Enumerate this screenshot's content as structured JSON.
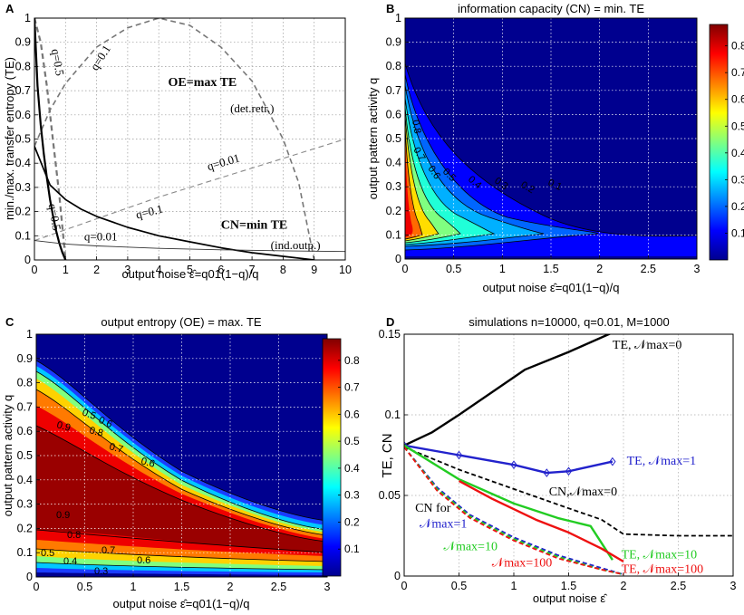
{
  "chart_data": [
    {
      "panel": "A",
      "type": "line",
      "title": "",
      "xlabel": "output noise ε̂=q01(1−q)/q",
      "ylabel": "min./max. transfer entropy (TE)",
      "xlim": [
        0,
        10
      ],
      "ylim": [
        0,
        1
      ],
      "xticks": [
        "0",
        "1",
        "2",
        "3",
        "4",
        "5",
        "6",
        "7",
        "8",
        "9",
        "10"
      ],
      "yticks": [
        "0",
        "0.1",
        "0.2",
        "0.3",
        "0.4",
        "0.5",
        "0.6",
        "0.7",
        "0.8",
        "0.9",
        "1"
      ],
      "series": [
        {
          "name": "OE q=0.5",
          "style": "dashed-thick",
          "x": [
            0,
            0.2,
            0.4,
            0.6,
            0.8,
            1.0
          ],
          "y": [
            1.0,
            0.9,
            0.72,
            0.49,
            0.27,
            0.0
          ]
        },
        {
          "name": "OE q=0.1",
          "style": "dashed",
          "x": [
            0,
            0.5,
            1,
            2,
            3,
            4,
            5,
            6,
            7,
            8,
            8.5,
            9
          ],
          "y": [
            0.47,
            0.62,
            0.73,
            0.88,
            0.96,
            1.0,
            0.97,
            0.88,
            0.74,
            0.5,
            0.32,
            0.0
          ]
        },
        {
          "name": "OE q=0.01",
          "style": "dashed-thin",
          "x": [
            0,
            2,
            4,
            6,
            8,
            10
          ],
          "y": [
            0.08,
            0.17,
            0.26,
            0.34,
            0.42,
            0.5
          ]
        },
        {
          "name": "CN q=0.5",
          "style": "solid-thick",
          "x": [
            0,
            0.1,
            0.2,
            0.3,
            0.4,
            0.5,
            0.6,
            0.7,
            0.8,
            0.9,
            1.0
          ],
          "y": [
            1.0,
            0.72,
            0.56,
            0.44,
            0.34,
            0.25,
            0.18,
            0.12,
            0.07,
            0.03,
            0.0
          ]
        },
        {
          "name": "CN q=0.1",
          "style": "solid",
          "x": [
            0,
            0.5,
            1,
            1.5,
            2,
            3,
            4,
            5,
            6,
            7,
            8,
            9
          ],
          "y": [
            0.47,
            0.31,
            0.25,
            0.21,
            0.18,
            0.135,
            0.1,
            0.075,
            0.05,
            0.03,
            0.015,
            0.0
          ]
        },
        {
          "name": "CN q=0.01",
          "style": "solid-thin",
          "x": [
            0,
            1,
            2,
            4,
            6,
            8,
            10
          ],
          "y": [
            0.08,
            0.066,
            0.058,
            0.048,
            0.042,
            0.038,
            0.035
          ]
        }
      ],
      "annotations": [
        {
          "text": "q=0.5",
          "x": 0.55,
          "y": 0.87,
          "rotate": 80
        },
        {
          "text": "q=0.1",
          "x": 2.0,
          "y": 0.78,
          "rotate": -58
        },
        {
          "text": "q=0.01",
          "x": 5.6,
          "y": 0.37,
          "rotate": -16
        },
        {
          "text": "q=0.5",
          "x": 0.45,
          "y": 0.23,
          "rotate": 80
        },
        {
          "text": "q=0.1",
          "x": 3.3,
          "y": 0.17,
          "rotate": -14
        },
        {
          "text": "q=0.01",
          "x": 1.6,
          "y": 0.08,
          "rotate": 0
        },
        {
          "text": "OE=max TE",
          "x": 4.3,
          "y": 0.72,
          "rotate": 0,
          "bold": true
        },
        {
          "text": "(det.retr.)",
          "x": 6.3,
          "y": 0.61,
          "rotate": 0
        },
        {
          "text": "CN=min TE",
          "x": 6.0,
          "y": 0.13,
          "rotate": 0,
          "bold": true
        },
        {
          "text": "(ind.outp.)",
          "x": 7.6,
          "y": 0.045,
          "rotate": 0
        }
      ]
    },
    {
      "panel": "B",
      "type": "heatmap",
      "title": "information capacity (CN) = min. TE",
      "xlabel": "output noise ε̂=q01(1−q)/q",
      "ylabel": "output pattern activity q",
      "xlim": [
        0,
        3
      ],
      "ylim": [
        0,
        1
      ],
      "xticks": [
        "0",
        "0.5",
        "1",
        "1.5",
        "2",
        "2.5",
        "3"
      ],
      "yticks": [
        "0",
        "0.1",
        "0.2",
        "0.3",
        "0.4",
        "0.5",
        "0.6",
        "0.7",
        "0.8",
        "0.9",
        "1"
      ],
      "contour_labels": [
        "0.8",
        "0.7",
        "0.6",
        "0.5",
        "0.4",
        "0.3",
        "0.2",
        "0.1"
      ],
      "colorbar_ticks": [
        "0.1",
        "0.2",
        "0.3",
        "0.4",
        "0.5",
        "0.6",
        "0.7",
        "0.8"
      ],
      "zlim": [
        0,
        0.88
      ]
    },
    {
      "panel": "C",
      "type": "heatmap",
      "title": "output entropy (OE) = max. TE",
      "xlabel": "output noise ε̂=q01(1−q)/q",
      "ylabel": "output pattern activity q",
      "xlim": [
        0,
        3
      ],
      "ylim": [
        0,
        1
      ],
      "xticks": [
        "0",
        "0.5",
        "1",
        "1.5",
        "2",
        "2.5",
        "3"
      ],
      "yticks": [
        "0",
        "0.1",
        "0.2",
        "0.3",
        "0.4",
        "0.5",
        "0.6",
        "0.7",
        "0.8",
        "0.9",
        "1"
      ],
      "contour_labels": [
        "0.5",
        "0.6",
        "0.9",
        "0.8",
        "0.7",
        "0.6",
        "0.9",
        "0.8",
        "0.7",
        "0.6",
        "0.5",
        "0.4",
        "0.3"
      ],
      "colorbar_ticks": [
        "0.1",
        "0.2",
        "0.3",
        "0.4",
        "0.5",
        "0.6",
        "0.7",
        "0.8"
      ],
      "zlim": [
        0,
        0.88
      ]
    },
    {
      "panel": "D",
      "type": "line",
      "title": "simulations n=10000, q=0.01, M=1000",
      "xlabel": "output noise ε̂",
      "ylabel": "TE, CN",
      "xlim": [
        0,
        3
      ],
      "ylim": [
        0,
        0.15
      ],
      "xticks": [
        "0",
        "0.5",
        "1",
        "1.5",
        "2",
        "2.5",
        "3"
      ],
      "yticks": [
        "0",
        "0.05",
        "0.1",
        "0.15"
      ],
      "series": [
        {
          "name": "TE, Nmax=0",
          "color": "#000000",
          "style": "solid",
          "x": [
            0,
            0.25,
            0.5,
            1.1,
            1.5,
            1.9
          ],
          "y": [
            0.081,
            0.089,
            0.1,
            0.128,
            0.139,
            0.151
          ]
        },
        {
          "name": "TE, Nmax=1",
          "color": "#2222cc",
          "style": "solid-marker",
          "x": [
            0,
            0.5,
            1.0,
            1.3,
            1.5,
            1.9
          ],
          "y": [
            0.081,
            0.075,
            0.069,
            0.064,
            0.065,
            0.071
          ]
        },
        {
          "name": "CN, Nmax=0",
          "color": "#000000",
          "style": "dashed",
          "x": [
            0,
            0.5,
            1.0,
            1.5,
            1.8,
            2.0,
            2.5,
            3.0
          ],
          "y": [
            0.08,
            0.066,
            0.054,
            0.042,
            0.035,
            0.026,
            0.025,
            0.025
          ]
        },
        {
          "name": "TE, Nmax=10",
          "color": "#22cc22",
          "style": "solid",
          "x": [
            0,
            0.5,
            1.0,
            1.4,
            1.7,
            1.9
          ],
          "y": [
            0.081,
            0.06,
            0.045,
            0.036,
            0.031,
            0.01
          ]
        },
        {
          "name": "TE, Nmax=100",
          "color": "#ee1111",
          "style": "solid",
          "x": [
            0.5,
            0.8,
            1.2,
            1.5,
            1.8,
            2.0
          ],
          "y": [
            0.059,
            0.048,
            0.035,
            0.027,
            0.017,
            0.009
          ]
        },
        {
          "name": "CN, Nmax=1",
          "color": "#2222cc",
          "style": "dashed",
          "x": [
            0,
            0.3,
            0.6,
            1.0,
            1.4,
            1.8,
            2.0
          ],
          "y": [
            0.08,
            0.055,
            0.038,
            0.024,
            0.013,
            0.005,
            0.001
          ]
        },
        {
          "name": "CN, Nmax=10",
          "color": "#22cc22",
          "style": "dashed",
          "x": [
            0,
            0.3,
            0.6,
            1.0,
            1.4,
            1.8,
            2.0
          ],
          "y": [
            0.08,
            0.054,
            0.037,
            0.023,
            0.012,
            0.004,
            0.001
          ]
        },
        {
          "name": "CN, Nmax=100",
          "color": "#ee1111",
          "style": "dashed",
          "x": [
            0,
            0.3,
            0.6,
            1.0,
            1.4,
            1.8,
            2.0
          ],
          "y": [
            0.08,
            0.053,
            0.036,
            0.022,
            0.011,
            0.004,
            0.001
          ]
        }
      ],
      "annotations": [
        {
          "text": "TE, 𝒩max=0",
          "x": 1.9,
          "y": 0.141,
          "color": "#000000"
        },
        {
          "text": "TE, 𝒩max=1",
          "x": 2.03,
          "y": 0.069,
          "color": "#2222cc"
        },
        {
          "text": "CN,𝒩max=0",
          "x": 1.32,
          "y": 0.05,
          "color": "#000000"
        },
        {
          "text": "CN for",
          "x": 0.1,
          "y": 0.04,
          "color": "#000000"
        },
        {
          "text": "𝒩max=1",
          "x": 0.14,
          "y": 0.03,
          "color": "#2222cc"
        },
        {
          "text": "𝒩max=10",
          "x": 0.36,
          "y": 0.016,
          "color": "#22cc22"
        },
        {
          "text": "𝒩max=100",
          "x": 0.8,
          "y": 0.006,
          "color": "#ee1111"
        },
        {
          "text": "TE, 𝒩max=10",
          "x": 1.98,
          "y": 0.011,
          "color": "#22cc22"
        },
        {
          "text": "TE, 𝒩max=100",
          "x": 1.98,
          "y": 0.002,
          "color": "#ee1111"
        }
      ]
    }
  ],
  "panel_labels": [
    "A",
    "B",
    "C",
    "D"
  ]
}
